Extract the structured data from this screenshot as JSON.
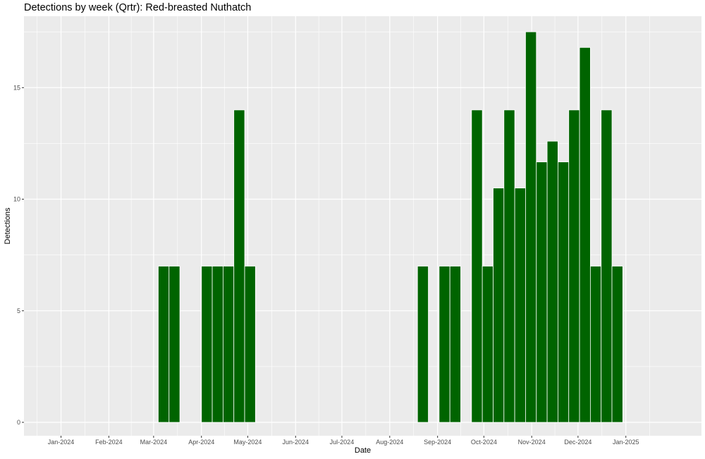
{
  "chart_data": {
    "type": "bar",
    "title": "Detections by week (Qrtr): Red-breasted Nuthatch",
    "xlabel": "Date",
    "ylabel": "Detections",
    "ylim": [
      -0.6,
      18.2
    ],
    "y_ticks": [
      0,
      5,
      10,
      15
    ],
    "y_tick_labels": [
      "0",
      "5",
      "10",
      "15"
    ],
    "x_range": [
      "2023-12-08",
      "2025-02-19"
    ],
    "x_ticks": [
      "2024-01-01",
      "2024-02-01",
      "2024-03-01",
      "2024-04-01",
      "2024-05-01",
      "2024-06-01",
      "2024-07-01",
      "2024-08-01",
      "2024-09-01",
      "2024-10-01",
      "2024-11-01",
      "2024-12-01",
      "2025-01-01"
    ],
    "x_tick_labels": [
      "Jan-2024",
      "Feb-2024",
      "Mar-2024",
      "Apr-2024",
      "May-2024",
      "Jun-2024",
      "Jul-2024",
      "Aug-2024",
      "Sep-2024",
      "Oct-2024",
      "Nov-2024",
      "Dec-2024",
      "Jan-2025"
    ],
    "grid": true,
    "bar_color": "#006400",
    "panel_color": "#ebebeb",
    "x": [
      "2024-03-04",
      "2024-03-11",
      "2024-04-01",
      "2024-04-08",
      "2024-04-15",
      "2024-04-22",
      "2024-04-29",
      "2024-08-19",
      "2024-09-02",
      "2024-09-09",
      "2024-09-23",
      "2024-09-30",
      "2024-10-07",
      "2024-10-14",
      "2024-10-21",
      "2024-10-28",
      "2024-11-04",
      "2024-11-11",
      "2024-11-18",
      "2024-11-25",
      "2024-12-02",
      "2024-12-09",
      "2024-12-16",
      "2024-12-23"
    ],
    "values": [
      7,
      7,
      7,
      7,
      7,
      14,
      7,
      7,
      7,
      7,
      14,
      7,
      10.5,
      14,
      10.5,
      17.5,
      11.67,
      12.6,
      11.67,
      14,
      16.8,
      7,
      14,
      7
    ]
  }
}
